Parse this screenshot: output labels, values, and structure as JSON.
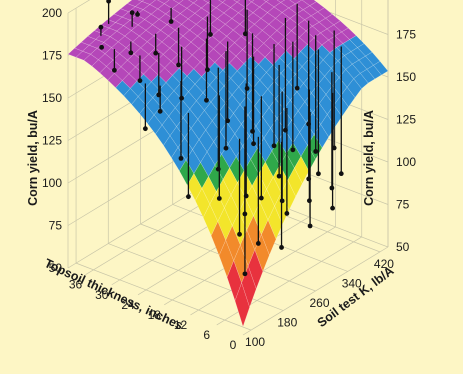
{
  "chart_data": {
    "type": "surface3d",
    "title": "",
    "x_axis": {
      "label": "Soil test K, lb/A",
      "ticks": [
        100,
        180,
        260,
        340,
        420
      ],
      "range": [
        80,
        440
      ]
    },
    "y_axis": {
      "label": "Topsoil thickness, inches",
      "ticks": [
        0,
        6,
        12,
        18,
        24,
        30,
        36
      ],
      "range": [
        0,
        40
      ]
    },
    "z_axis": {
      "label": "Corn yield, bu/A",
      "ticks": [
        50,
        75,
        100,
        125,
        150,
        175,
        200
      ],
      "range": [
        50,
        200
      ]
    },
    "grid": true,
    "surface": "fitted response surface of corn yield vs. topsoil thickness and soil test K; yield rises with both, plateauing near 190 bu/A",
    "surface_color_bands": [
      {
        "from": 50,
        "to": 85,
        "color": "#e8323e"
      },
      {
        "from": 85,
        "to": 100,
        "color": "#f28a2b"
      },
      {
        "from": 100,
        "to": 125,
        "color": "#f3e52b"
      },
      {
        "from": 125,
        "to": 133,
        "color": "#2fa84a"
      },
      {
        "from": 133,
        "to": 168,
        "color": "#2e8fd6"
      },
      {
        "from": 168,
        "to": 205,
        "color": "#b547b9"
      }
    ],
    "observations": [
      {
        "k": 120,
        "t": 36,
        "yield": 178
      },
      {
        "k": 130,
        "t": 34,
        "yield": 165
      },
      {
        "k": 140,
        "t": 38,
        "yield": 185
      },
      {
        "k": 150,
        "t": 30,
        "yield": 160
      },
      {
        "k": 160,
        "t": 33,
        "yield": 172
      },
      {
        "k": 175,
        "t": 28,
        "yield": 150
      },
      {
        "k": 185,
        "t": 35,
        "yield": 190
      },
      {
        "k": 200,
        "t": 31,
        "yield": 168
      },
      {
        "k": 210,
        "t": 26,
        "yield": 145
      },
      {
        "k": 220,
        "t": 37,
        "yield": 182
      },
      {
        "k": 235,
        "t": 29,
        "yield": 158
      },
      {
        "k": 250,
        "t": 24,
        "yield": 140
      },
      {
        "k": 260,
        "t": 33,
        "yield": 176
      },
      {
        "k": 270,
        "t": 21,
        "yield": 128
      },
      {
        "k": 285,
        "t": 27,
        "yield": 150
      },
      {
        "k": 295,
        "t": 36,
        "yield": 186
      },
      {
        "k": 310,
        "t": 19,
        "yield": 118
      },
      {
        "k": 325,
        "t": 30,
        "yield": 162
      },
      {
        "k": 340,
        "t": 23,
        "yield": 135
      },
      {
        "k": 355,
        "t": 34,
        "yield": 178
      },
      {
        "k": 370,
        "t": 17,
        "yield": 112
      },
      {
        "k": 390,
        "t": 28,
        "yield": 155
      },
      {
        "k": 405,
        "t": 38,
        "yield": 190
      },
      {
        "k": 140,
        "t": 18,
        "yield": 105
      },
      {
        "k": 165,
        "t": 22,
        "yield": 120
      },
      {
        "k": 195,
        "t": 16,
        "yield": 98
      },
      {
        "k": 225,
        "t": 19,
        "yield": 108
      },
      {
        "k": 240,
        "t": 14,
        "yield": 95
      },
      {
        "k": 255,
        "t": 20,
        "yield": 115
      },
      {
        "k": 300,
        "t": 12,
        "yield": 100
      },
      {
        "k": 320,
        "t": 15,
        "yield": 112
      },
      {
        "k": 345,
        "t": 13,
        "yield": 108
      },
      {
        "k": 365,
        "t": 9,
        "yield": 95
      },
      {
        "k": 380,
        "t": 11,
        "yield": 104
      },
      {
        "k": 400,
        "t": 7,
        "yield": 92
      },
      {
        "k": 415,
        "t": 10,
        "yield": 102
      },
      {
        "k": 180,
        "t": 10,
        "yield": 85
      },
      {
        "k": 205,
        "t": 8,
        "yield": 78
      },
      {
        "k": 230,
        "t": 5,
        "yield": 75
      },
      {
        "k": 265,
        "t": 7,
        "yield": 88
      },
      {
        "k": 290,
        "t": 4,
        "yield": 80
      },
      {
        "k": 310,
        "t": 6,
        "yield": 90
      },
      {
        "k": 335,
        "t": 3,
        "yield": 85
      },
      {
        "k": 355,
        "t": 5,
        "yield": 92
      },
      {
        "k": 150,
        "t": 6,
        "yield": 70
      },
      {
        "k": 245,
        "t": 11,
        "yield": 96
      },
      {
        "k": 275,
        "t": 9,
        "yield": 92
      },
      {
        "k": 395,
        "t": 14,
        "yield": 115
      },
      {
        "k": 410,
        "t": 18,
        "yield": 130
      },
      {
        "k": 120,
        "t": 26,
        "yield": 140
      },
      {
        "k": 135,
        "t": 24,
        "yield": 150
      },
      {
        "k": 170,
        "t": 39,
        "yield": 195
      },
      {
        "k": 215,
        "t": 12,
        "yield": 90
      },
      {
        "k": 280,
        "t": 16,
        "yield": 118
      },
      {
        "k": 330,
        "t": 8,
        "yield": 98
      }
    ]
  }
}
